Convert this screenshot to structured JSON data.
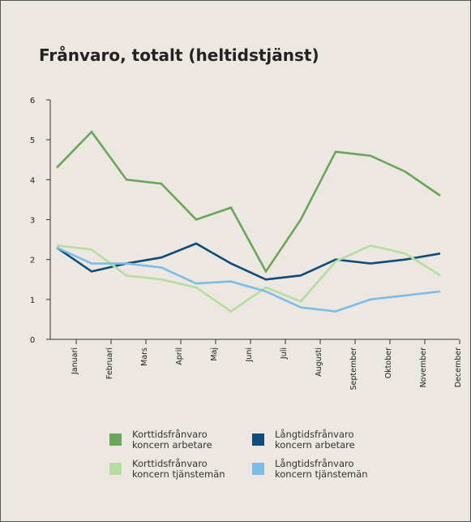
{
  "chart_data": {
    "type": "line",
    "title": "Frånvaro, totalt (heltidstjänst)",
    "categories": [
      "Januari",
      "Februari",
      "Mars",
      "April",
      "Maj",
      "Juni",
      "Juli",
      "Augusti",
      "September",
      "Oktober",
      "November",
      "December"
    ],
    "ylim": [
      0,
      6
    ],
    "yticks": [
      0,
      1,
      2,
      3,
      4,
      5,
      6
    ],
    "series": [
      {
        "name": "Korttidsfrånvaro koncern arbetare",
        "color": "#6aa55a",
        "values": [
          4.3,
          5.2,
          4.0,
          3.9,
          3.0,
          3.3,
          1.7,
          3.0,
          4.7,
          4.6,
          4.2,
          3.6
        ]
      },
      {
        "name": "Långtidsfrånvaro koncern arbetare",
        "color": "#0f4c7a",
        "values": [
          2.3,
          1.7,
          1.9,
          2.05,
          2.4,
          1.9,
          1.5,
          1.6,
          2.0,
          1.9,
          2.0,
          2.15
        ]
      },
      {
        "name": "Korttidsfrånvaro koncern tjänstemän",
        "color": "#b6dca0",
        "values": [
          2.35,
          2.25,
          1.6,
          1.5,
          1.3,
          0.7,
          1.3,
          0.95,
          1.95,
          2.35,
          2.15,
          1.6
        ]
      },
      {
        "name": "Långtidsfrånvaro koncern tjänstemän",
        "color": "#7bbde8",
        "values": [
          2.3,
          1.9,
          1.9,
          1.8,
          1.4,
          1.45,
          1.2,
          0.8,
          0.7,
          1.0,
          1.1,
          1.2
        ]
      }
    ]
  }
}
